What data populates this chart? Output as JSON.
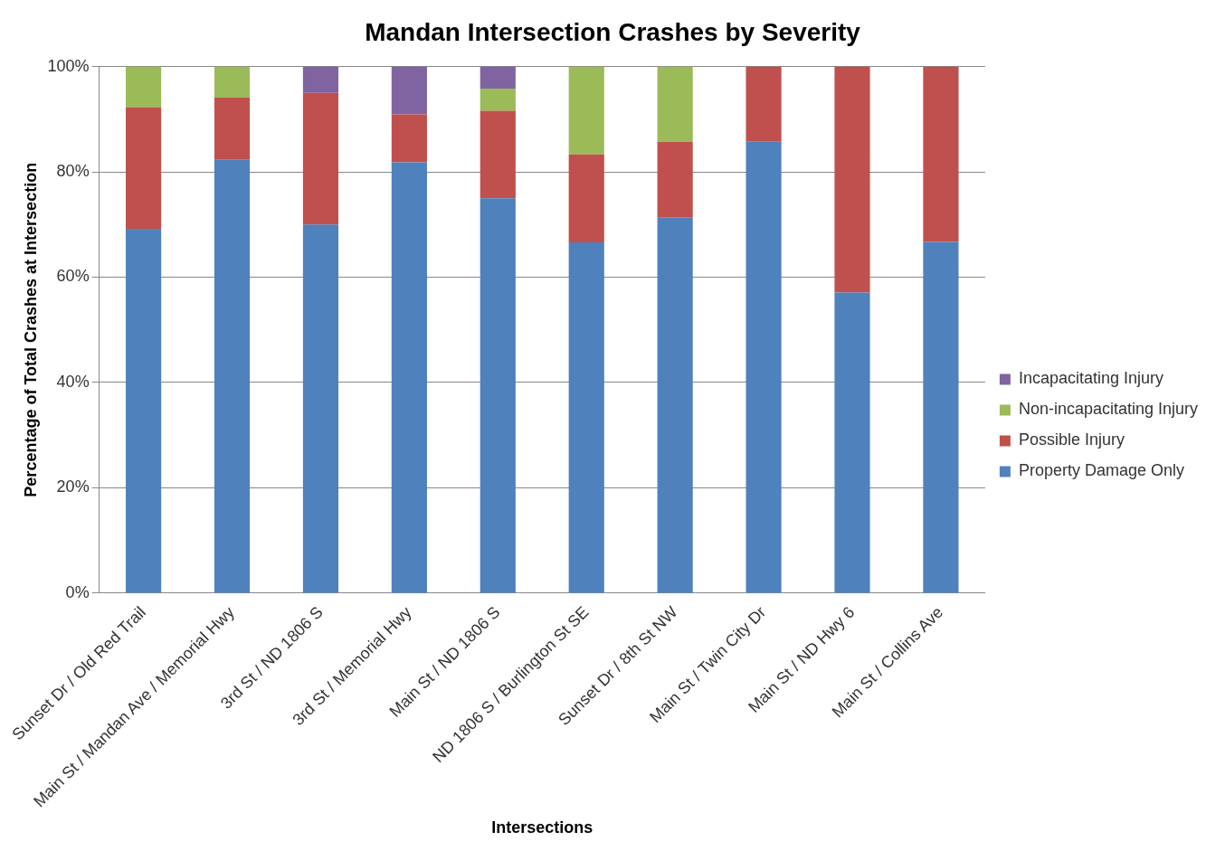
{
  "chart_data": {
    "type": "bar",
    "title": "Mandan Intersection Crashes by Severity",
    "xlabel": "Intersections",
    "ylabel": "Percentage of Total Crashes at Intersection",
    "categories": [
      "Sunset Dr / Old Red Trail",
      "Main St / Mandan Ave / Memorial Hwy",
      "3rd St / ND 1806 S",
      "3rd St / Memorial Hwy",
      "Main St / ND 1806 S",
      "ND 1806 S / Burlington St SE",
      "Sunset Dr / 8th St NW",
      "Main St / Twin City Dr",
      "Main St / ND Hwy 6",
      "Main St / Collins Ave"
    ],
    "series": [
      {
        "name": "Property Damage Only",
        "color": "#4f81bd",
        "values": [
          69.2,
          82.3,
          70,
          81.8,
          75,
          66.6,
          71.4,
          85.7,
          57.1,
          66.7
        ]
      },
      {
        "name": "Possible Injury",
        "color": "#c0504d",
        "values": [
          23.1,
          11.8,
          25,
          9.1,
          16.6,
          16.7,
          14.3,
          14.3,
          42.9,
          33.3
        ]
      },
      {
        "name": "Non-incapacitating Injury",
        "color": "#9bbb59",
        "values": [
          7.7,
          5.9,
          0,
          0,
          4.2,
          16.7,
          14.3,
          0,
          0,
          0
        ]
      },
      {
        "name": "Incapacitating Injury",
        "color": "#8064a2",
        "values": [
          0,
          0,
          5,
          9.1,
          4.2,
          0,
          0,
          0,
          0,
          0
        ]
      }
    ],
    "stacked": true,
    "ylim": [
      0,
      100
    ],
    "yticks": [
      {
        "value": 0,
        "label": "0%"
      },
      {
        "value": 20,
        "label": "20%"
      },
      {
        "value": 40,
        "label": "40%"
      },
      {
        "value": 60,
        "label": "60%"
      },
      {
        "value": 80,
        "label": "80%"
      },
      {
        "value": 100,
        "label": "100%"
      }
    ],
    "grid": "y",
    "legend": "right"
  }
}
